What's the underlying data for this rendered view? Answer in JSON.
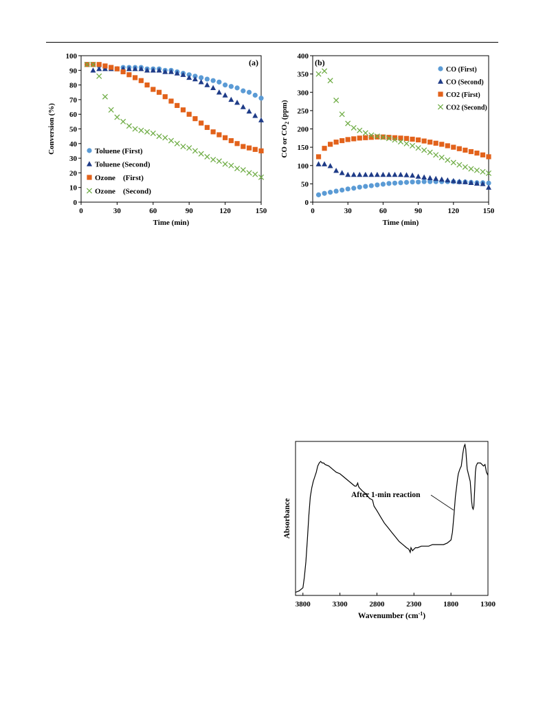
{
  "chart_data": [
    {
      "id": "a",
      "type": "scatter",
      "panel_label": "(a)",
      "xlabel": "Time (min)",
      "ylabel": "Conversion (%)",
      "xlim": [
        0,
        150
      ],
      "ylim": [
        0,
        100
      ],
      "xticks": [
        0,
        30,
        60,
        90,
        120,
        150
      ],
      "yticks": [
        0,
        10,
        20,
        30,
        40,
        50,
        60,
        70,
        80,
        90,
        100
      ],
      "grid": false,
      "legend_position": "bottom-left",
      "series": [
        {
          "name": "Toluene (First)",
          "marker": "circle",
          "color": "#5b9bd5",
          "x": [
            5,
            10,
            15,
            20,
            25,
            30,
            35,
            40,
            45,
            50,
            55,
            60,
            65,
            70,
            75,
            80,
            85,
            90,
            95,
            100,
            105,
            110,
            115,
            120,
            125,
            130,
            135,
            140,
            145,
            150
          ],
          "y": [
            94,
            94,
            93,
            92,
            92,
            91,
            92,
            92,
            92,
            92,
            91,
            91,
            91,
            90,
            90,
            89,
            88,
            87,
            86,
            85,
            84,
            83,
            82,
            80,
            79,
            78,
            76,
            75,
            73,
            71
          ]
        },
        {
          "name": "Toluene (Second)",
          "marker": "triangle",
          "color": "#1f3c88",
          "x": [
            10,
            15,
            20,
            25,
            30,
            35,
            40,
            45,
            50,
            55,
            60,
            65,
            70,
            75,
            80,
            85,
            90,
            95,
            100,
            105,
            110,
            115,
            120,
            125,
            130,
            135,
            140,
            145,
            150
          ],
          "y": [
            90,
            91,
            91,
            91,
            91,
            91,
            91,
            91,
            91,
            90,
            90,
            90,
            89,
            89,
            88,
            87,
            85,
            84,
            82,
            80,
            78,
            75,
            73,
            70,
            68,
            65,
            62,
            59,
            56
          ]
        },
        {
          "name": "Ozone    (First)",
          "marker": "square",
          "color": "#e2621b",
          "x": [
            5,
            10,
            15,
            20,
            25,
            30,
            35,
            40,
            45,
            50,
            55,
            60,
            65,
            70,
            75,
            80,
            85,
            90,
            95,
            100,
            105,
            110,
            115,
            120,
            125,
            130,
            135,
            140,
            145,
            150
          ],
          "y": [
            94,
            94,
            94,
            93,
            92,
            91,
            89,
            87,
            85,
            83,
            80,
            77,
            75,
            72,
            69,
            66,
            63,
            60,
            57,
            54,
            51,
            48,
            46,
            44,
            42,
            40,
            38,
            37,
            36,
            35
          ]
        },
        {
          "name": "Ozone    (Second)",
          "marker": "x",
          "color": "#70ad47",
          "x": [
            5,
            10,
            15,
            20,
            25,
            30,
            35,
            40,
            45,
            50,
            55,
            60,
            65,
            70,
            75,
            80,
            85,
            90,
            95,
            100,
            105,
            110,
            115,
            120,
            125,
            130,
            135,
            140,
            145,
            150
          ],
          "y": [
            94,
            94,
            86,
            72,
            63,
            58,
            55,
            52,
            50,
            49,
            48,
            47,
            45,
            44,
            42,
            40,
            38,
            37,
            35,
            33,
            31,
            29,
            28,
            26,
            25,
            23,
            22,
            20,
            19,
            17
          ]
        }
      ]
    },
    {
      "id": "b",
      "type": "scatter",
      "panel_label": "(b)",
      "xlabel": "Time (min)",
      "ylabel": "CO or CO2 (ppm)",
      "ylabel_main": "CO or CO",
      "ylabel_sub": "2",
      "ylabel_rest": " (ppm)",
      "xlim": [
        0,
        150
      ],
      "ylim": [
        0,
        400
      ],
      "xticks": [
        0,
        30,
        60,
        90,
        120,
        150
      ],
      "yticks": [
        0,
        50,
        100,
        150,
        200,
        250,
        300,
        350,
        400
      ],
      "grid": false,
      "legend_position": "top-right",
      "series": [
        {
          "name": "CO (First)",
          "marker": "circle",
          "color": "#5b9bd5",
          "x": [
            5,
            10,
            15,
            20,
            25,
            30,
            35,
            40,
            45,
            50,
            55,
            60,
            65,
            70,
            75,
            80,
            85,
            90,
            95,
            100,
            105,
            110,
            115,
            120,
            125,
            130,
            135,
            140,
            145,
            150
          ],
          "y": [
            20,
            24,
            27,
            30,
            33,
            36,
            38,
            41,
            43,
            45,
            47,
            49,
            51,
            52,
            53,
            54,
            55,
            55,
            56,
            56,
            56,
            56,
            56,
            56,
            55,
            55,
            54,
            53,
            53,
            52
          ]
        },
        {
          "name": "CO (Second)",
          "marker": "triangle",
          "color": "#1f3c88",
          "x": [
            5,
            10,
            15,
            20,
            25,
            30,
            35,
            40,
            45,
            50,
            55,
            60,
            65,
            70,
            75,
            80,
            85,
            90,
            95,
            100,
            105,
            110,
            115,
            120,
            125,
            130,
            135,
            140,
            145,
            150
          ],
          "y": [
            104,
            104,
            99,
            86,
            80,
            75,
            75,
            75,
            75,
            75,
            75,
            75,
            75,
            75,
            75,
            74,
            73,
            70,
            68,
            66,
            64,
            62,
            60,
            58,
            56,
            55,
            53,
            51,
            50,
            40
          ]
        },
        {
          "name": "CO2 (First)",
          "marker": "square",
          "color": "#e2621b",
          "x": [
            5,
            10,
            15,
            20,
            25,
            30,
            35,
            40,
            45,
            50,
            55,
            60,
            65,
            70,
            75,
            80,
            85,
            90,
            95,
            100,
            105,
            110,
            115,
            120,
            125,
            130,
            135,
            140,
            145,
            150
          ],
          "y": [
            124,
            147,
            158,
            164,
            168,
            171,
            173,
            175,
            176,
            177,
            178,
            178,
            177,
            176,
            175,
            174,
            172,
            170,
            167,
            164,
            161,
            158,
            154,
            150,
            146,
            142,
            138,
            134,
            129,
            124
          ]
        },
        {
          "name": "CO2 (Second)",
          "marker": "x",
          "color": "#70ad47",
          "x": [
            5,
            10,
            15,
            20,
            25,
            30,
            35,
            40,
            45,
            50,
            55,
            60,
            65,
            70,
            75,
            80,
            85,
            90,
            95,
            100,
            105,
            110,
            115,
            120,
            125,
            130,
            135,
            140,
            145,
            150
          ],
          "y": [
            350,
            358,
            332,
            278,
            240,
            215,
            203,
            196,
            189,
            183,
            180,
            177,
            174,
            170,
            165,
            160,
            154,
            148,
            142,
            136,
            129,
            122,
            115,
            108,
            102,
            96,
            91,
            87,
            83,
            79
          ]
        }
      ]
    },
    {
      "id": "c",
      "type": "line",
      "xlabel": "Wavenumber (cm-1)",
      "xlabel_main": "Wavenumber (cm",
      "xlabel_sup": "-1",
      "xlabel_rest": ")",
      "ylabel": "Absorbance",
      "xlim": [
        3900,
        1300
      ],
      "xticks": [
        3800,
        3300,
        2800,
        2300,
        1800,
        1300
      ],
      "annotation": "After 1-min reaction",
      "grid": false,
      "series": [
        {
          "name": "",
          "color": "#000000",
          "x": [
            3900,
            3850,
            3800,
            3780,
            3760,
            3740,
            3720,
            3700,
            3680,
            3660,
            3640,
            3620,
            3600,
            3580,
            3560,
            3540,
            3520,
            3500,
            3450,
            3400,
            3350,
            3300,
            3250,
            3200,
            3150,
            3100,
            3080,
            3060,
            3050,
            3040,
            3000,
            2950,
            2900,
            2860,
            2850,
            2840,
            2800,
            2750,
            2700,
            2650,
            2600,
            2550,
            2500,
            2450,
            2400,
            2370,
            2350,
            2340,
            2320,
            2300,
            2280,
            2250,
            2200,
            2150,
            2100,
            2050,
            2000,
            1950,
            1900,
            1850,
            1800,
            1780,
            1760,
            1740,
            1720,
            1710,
            1700,
            1680,
            1660,
            1650,
            1640,
            1630,
            1620,
            1610,
            1600,
            1590,
            1580,
            1560,
            1540,
            1520,
            1510,
            1500,
            1490,
            1480,
            1470,
            1460,
            1450,
            1440,
            1420,
            1400,
            1380,
            1360,
            1340,
            1320,
            1300
          ],
          "y": [
            2,
            3,
            5,
            12,
            22,
            36,
            52,
            64,
            70,
            74,
            77,
            80,
            84,
            86,
            87,
            86,
            86,
            85,
            84,
            82,
            80,
            79,
            77,
            75,
            73,
            71,
            71,
            73,
            71,
            70,
            68,
            66,
            63,
            62,
            60,
            58,
            55,
            51,
            47,
            44,
            41,
            38,
            35,
            33,
            31,
            30,
            28,
            31,
            29,
            30,
            31,
            31,
            32,
            32,
            32,
            33,
            33,
            33,
            33,
            34,
            36,
            41,
            52,
            64,
            72,
            76,
            79,
            82,
            84,
            88,
            92,
            95,
            97,
            98,
            95,
            88,
            82,
            78,
            74,
            61,
            57,
            56,
            58,
            68,
            80,
            84,
            85,
            86,
            86,
            86,
            85,
            84,
            85,
            80,
            78
          ]
        }
      ]
    }
  ]
}
